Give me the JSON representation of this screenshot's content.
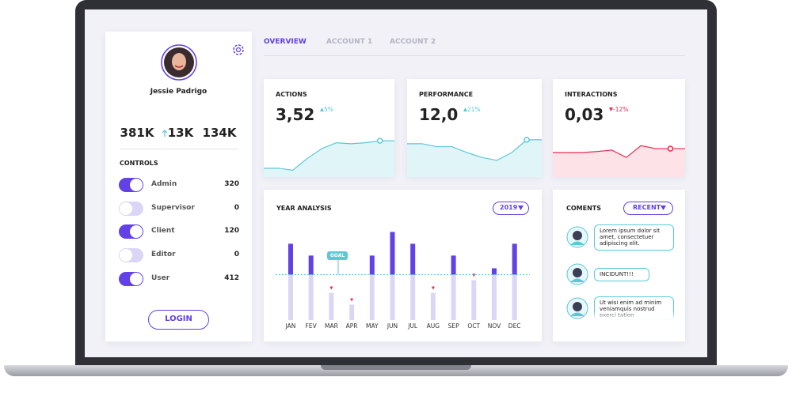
{
  "profile": {
    "name": "Jessie Padrigo",
    "stats": [
      "381K",
      "13K",
      "134K"
    ]
  },
  "controls": {
    "title": "CONTROLS",
    "items": [
      {
        "label": "Admin",
        "value": 320,
        "on": true
      },
      {
        "label": "Supervisor",
        "value": 0,
        "on": false
      },
      {
        "label": "Client",
        "value": 120,
        "on": true
      },
      {
        "label": "Editor",
        "value": 0,
        "on": false
      },
      {
        "label": "User",
        "value": 412,
        "on": true
      }
    ]
  },
  "login": "LOGIN",
  "tabs": [
    "OVERVIEW",
    "ACCOUNT 1",
    "ACCOUNT 2"
  ],
  "cards": [
    {
      "title": "ACTIONS",
      "value": "3,52",
      "change": "5%",
      "direction": "up",
      "color": "#5bc8d8",
      "fill": "#dff5f8",
      "trend": [
        18,
        18,
        14,
        38,
        58,
        70,
        68,
        70,
        74,
        74
      ]
    },
    {
      "title": "PERFORMANCE",
      "value": "12,0",
      "change": "21%",
      "direction": "up",
      "color": "#5bc8d8",
      "fill": "#dff5f8",
      "trend": [
        68,
        68,
        62,
        62,
        50,
        40,
        34,
        50,
        76,
        76
      ]
    },
    {
      "title": "INTERACTIONS",
      "value": "0,03",
      "change": "-12%",
      "direction": "down",
      "color": "#e8294d",
      "fill": "#fde3e8",
      "trend": [
        50,
        50,
        50,
        52,
        55,
        40,
        64,
        58,
        58,
        58
      ]
    }
  ],
  "year_analysis": {
    "title": "YEAR ANALYSIS",
    "year": "2019",
    "goal_label": "GOAL",
    "goal": 50,
    "ylim": [
      0,
      100
    ],
    "categories": [
      "JAN",
      "FEV",
      "MAR",
      "APR",
      "MAY",
      "JUN",
      "JUL",
      "AUG",
      "SEP",
      "OCT",
      "NOV",
      "DEC"
    ],
    "values": [
      84,
      71,
      30,
      17,
      71,
      97,
      84,
      30,
      71,
      44,
      57,
      84
    ]
  },
  "comments": {
    "title": "COMENTS",
    "filter": "RECENT",
    "items": [
      "Lorem ipsum dolor sit amet, consectetuer adipiscing elit.",
      "INCIDUNT!!!",
      "Ut wisi enim ad minim veniamquis nostrud exerci tation"
    ]
  }
}
